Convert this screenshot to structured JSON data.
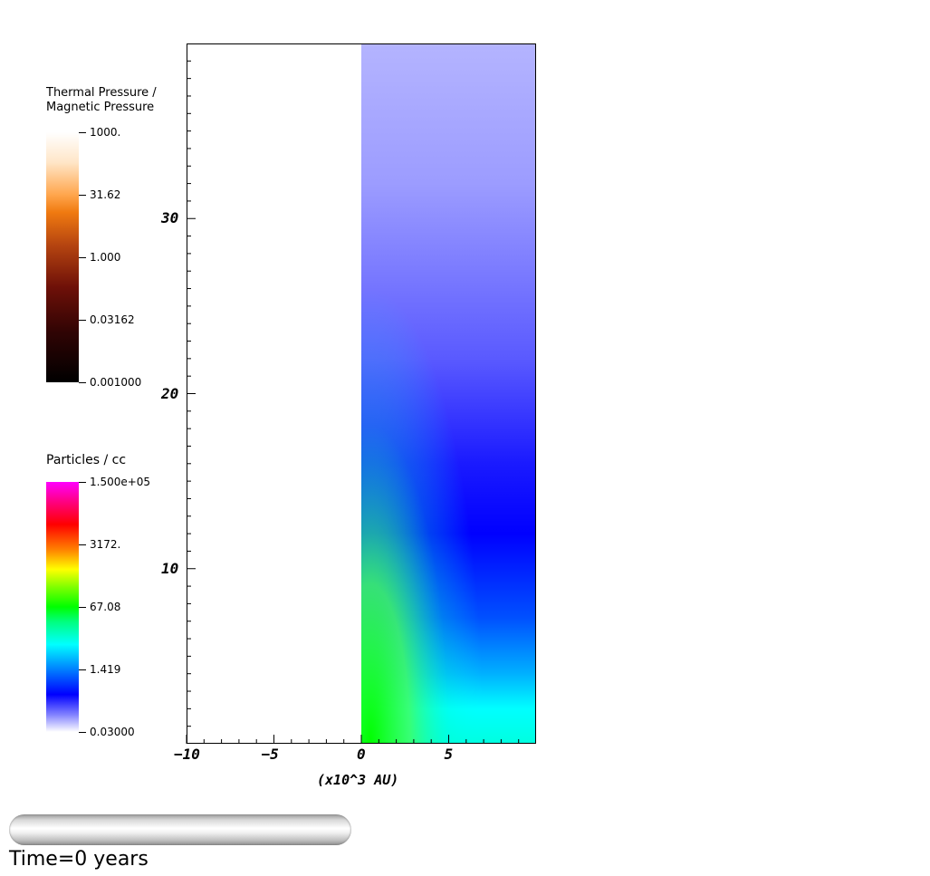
{
  "thermal_legend": {
    "title": "Thermal Pressure /\nMagnetic Pressure",
    "ticks": [
      "1000.",
      "31.62",
      "1.000",
      "0.03162",
      "0.001000"
    ]
  },
  "density_legend": {
    "title": "Particles / cc",
    "ticks": [
      "1.500e+05",
      "3172.",
      "67.08",
      "1.419",
      "0.03000"
    ]
  },
  "chart_data": {
    "type": "heatmap",
    "xlabel": "(x10^3 AU)",
    "ylabel": "",
    "xlim": [
      -10,
      10
    ],
    "ylim": [
      0,
      40
    ],
    "x_ticks": [
      "−10",
      "−5",
      "0",
      "5"
    ],
    "y_ticks": [
      "10",
      "20",
      "30"
    ],
    "field": "Particles / cc",
    "data_extent_x": [
      0,
      10
    ],
    "field_by_height": [
      {
        "y": 0,
        "value": 67.08
      },
      {
        "y": 3,
        "value": 10
      },
      {
        "y": 8,
        "value": 1.419
      },
      {
        "y": 15,
        "value": 0.8
      },
      {
        "y": 25,
        "value": 0.3
      },
      {
        "y": 40,
        "value": 0.03
      }
    ]
  },
  "progress": {
    "fraction": 0
  },
  "time_label": "Time=0 years"
}
